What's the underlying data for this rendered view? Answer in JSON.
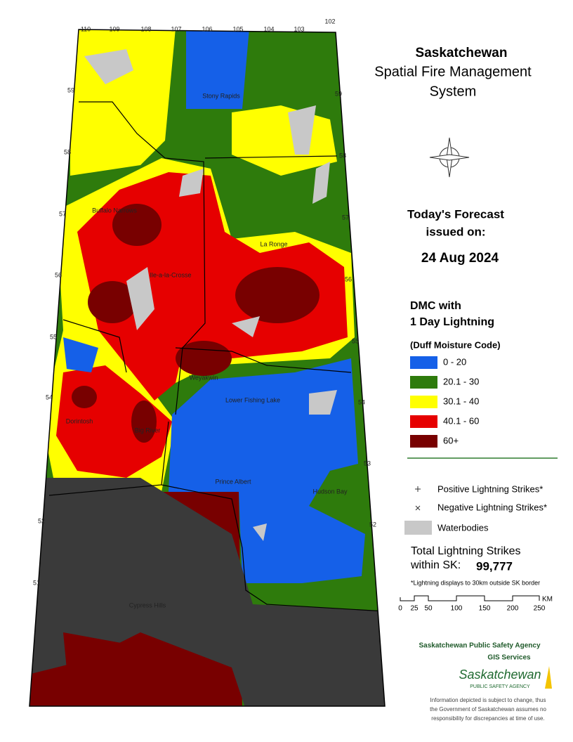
{
  "header": {
    "title": "Saskatchewan",
    "subtitle_lines": [
      "Spatial Fire Management",
      "System"
    ]
  },
  "forecast": {
    "lines": [
      "Today's Forecast",
      "issued on:"
    ],
    "date": "24 Aug 2024"
  },
  "legend": {
    "title_lines": [
      "DMC with",
      "1 Day Lightning"
    ],
    "subtitle": "(Duff Moisture Code)",
    "items": [
      {
        "label": "0 - 20",
        "color": "#1560e8"
      },
      {
        "label": "20.1 - 30",
        "color": "#2e7b0c"
      },
      {
        "label": "30.1 - 40",
        "color": "#ffff00"
      },
      {
        "label": "40.1 - 60",
        "color": "#e60000"
      },
      {
        "label": "60+",
        "color": "#780000"
      }
    ],
    "positive": "Positive Lightning Strikes*",
    "negative": "Negative Lightning Strikes*",
    "waterbodies": "Waterbodies"
  },
  "total": {
    "lines": [
      "Total Lightning Strikes",
      "within SK:"
    ],
    "value": "99,777",
    "note": "*Lightning displays to 30km outside SK border"
  },
  "scale": {
    "ticks": [
      "0",
      "25",
      "50",
      "100",
      "150",
      "200",
      "250"
    ],
    "unit": "KM"
  },
  "agency": {
    "name": "Saskatchewan Public Safety Agency",
    "unit": "GIS  Services",
    "logo": "Saskatchewan",
    "logo_sub": "PUBLIC SAFETY AGENCY"
  },
  "disclaimer": [
    "Information depicted is subject to change, thus",
    "the Government of Saskatchewan assumes no",
    "responsibility for discrepancies at time of use."
  ],
  "map": {
    "longitudes": [
      "110",
      "109",
      "108",
      "107",
      "106",
      "105",
      "104",
      "103",
      "102"
    ],
    "latitudes": [
      "59",
      "58",
      "57",
      "56",
      "55",
      "54",
      "53",
      "52",
      "51"
    ],
    "places": [
      "Stony Rapids",
      "Buffalo Narrows",
      "Ile-a-la-Crosse",
      "La Ronge",
      "Weyakwin",
      "Lower Fishing Lake",
      "Dorintosh",
      "Big River",
      "Prince Albert",
      "Hudson Bay",
      "Cypress Hills"
    ]
  }
}
